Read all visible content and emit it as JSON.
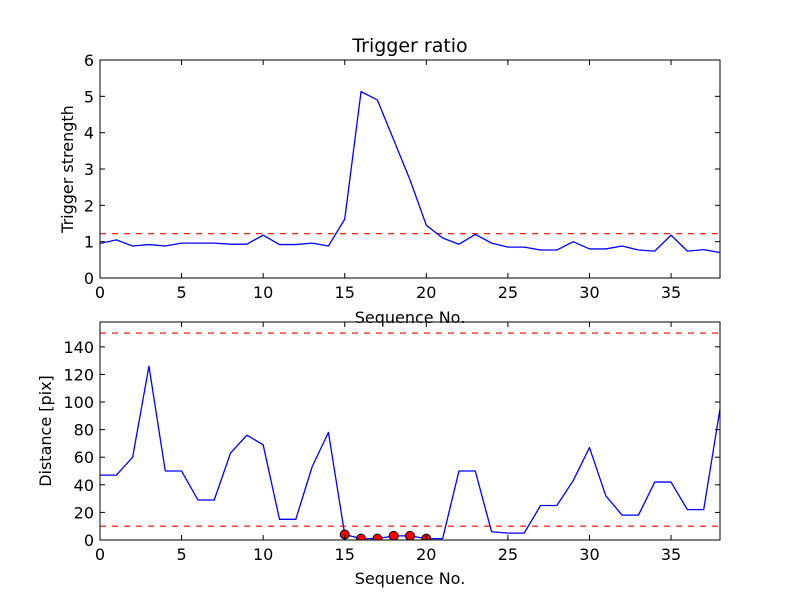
{
  "chart_data": [
    {
      "type": "line",
      "title": "Trigger ratio",
      "xlabel": "Sequence No.",
      "ylabel": "Trigger strength",
      "xlim": [
        0,
        38
      ],
      "ylim": [
        0,
        6
      ],
      "xticks": [
        "0",
        "5",
        "10",
        "15",
        "20",
        "25",
        "30",
        "35"
      ],
      "yticks": [
        "0",
        "1",
        "2",
        "3",
        "4",
        "5",
        "6"
      ],
      "grid": false,
      "series": [
        {
          "color": "#0000ff",
          "x": [
            0,
            1,
            2,
            3,
            4,
            5,
            6,
            7,
            8,
            9,
            10,
            11,
            12,
            13,
            14,
            15,
            16,
            17,
            18,
            19,
            20,
            21,
            22,
            23,
            24,
            25,
            26,
            27,
            28,
            29,
            30,
            31,
            32,
            33,
            34,
            35,
            36,
            37,
            38
          ],
          "values": [
            0.95,
            1.05,
            0.88,
            0.92,
            0.88,
            0.96,
            0.96,
            0.96,
            0.93,
            0.93,
            1.18,
            0.92,
            0.92,
            0.96,
            0.88,
            1.62,
            5.13,
            4.9,
            3.8,
            2.7,
            1.45,
            1.1,
            0.93,
            1.2,
            0.96,
            0.85,
            0.85,
            0.77,
            0.77,
            1.0,
            0.8,
            0.8,
            0.88,
            0.77,
            0.74,
            1.18,
            0.74,
            0.78,
            0.7
          ]
        }
      ],
      "hlines": [
        {
          "y": 1.22,
          "color": "#ff0000",
          "style": "dashed"
        }
      ]
    },
    {
      "type": "line",
      "title": "",
      "xlabel": "Sequence No.",
      "ylabel": "Distance [pix]",
      "xlim": [
        0,
        38
      ],
      "ylim": [
        0,
        158
      ],
      "xticks": [
        "0",
        "5",
        "10",
        "15",
        "20",
        "25",
        "30",
        "35"
      ],
      "yticks": [
        "0",
        "20",
        "40",
        "60",
        "80",
        "100",
        "120",
        "140"
      ],
      "grid": false,
      "series": [
        {
          "color": "#0000ff",
          "x": [
            0,
            1,
            2,
            3,
            4,
            5,
            6,
            7,
            8,
            9,
            10,
            11,
            12,
            13,
            14,
            15,
            16,
            17,
            18,
            19,
            20,
            21,
            22,
            23,
            24,
            25,
            26,
            27,
            28,
            29,
            30,
            31,
            32,
            33,
            34,
            35,
            36,
            37,
            38
          ],
          "values": [
            47,
            47,
            60,
            126,
            50,
            50,
            29,
            29,
            63,
            76,
            69,
            15,
            15,
            53,
            78,
            4,
            1,
            1,
            3,
            3,
            1,
            1,
            50,
            50,
            6,
            5,
            5,
            25,
            25,
            43,
            67,
            32,
            18,
            18,
            42,
            42,
            22,
            22,
            95
          ]
        }
      ],
      "markers": {
        "color": "#ff0000",
        "x": [
          15,
          16,
          17,
          18,
          19,
          20
        ],
        "values": [
          4,
          1,
          1,
          3,
          3,
          1
        ]
      },
      "hlines": [
        {
          "y": 150,
          "color": "#ff0000",
          "style": "dashed"
        },
        {
          "y": 10,
          "color": "#ff0000",
          "style": "dashed"
        }
      ]
    }
  ]
}
